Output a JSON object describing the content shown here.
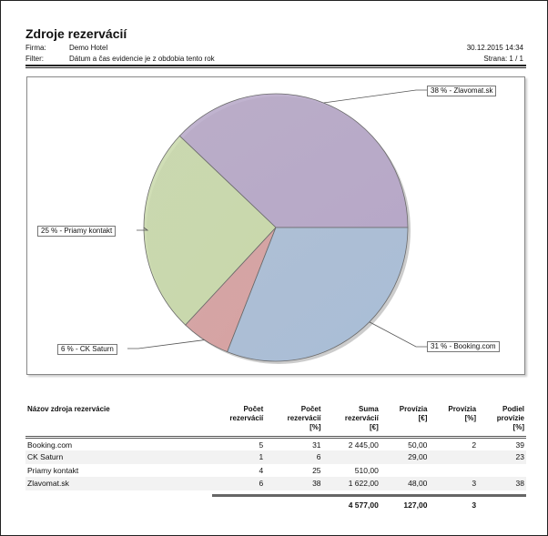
{
  "header": {
    "title": "Zdroje rezervácií",
    "firma_label": "Firma:",
    "firma_value": "Demo Hotel",
    "filter_label": "Filter:",
    "filter_value": "Dátum a čas evidencie je z obdobia tento rok",
    "datetime": "30.12.2015 14:34",
    "page": "Strana: 1 / 1"
  },
  "chart_data": {
    "type": "pie",
    "categories": [
      "Zlavomat.sk",
      "Priamy kontakt",
      "CK Saturn",
      "Booking.com"
    ],
    "values": [
      38,
      25,
      6,
      31
    ],
    "labels": [
      "38 % - Zlavomat.sk",
      "25 % - Priamy kontakt",
      "6 % - CK Saturn",
      "31 % - Booking.com"
    ],
    "colors": [
      "#b7a8c8",
      "#c9d9ab",
      "#d6a1a1",
      "#a9bdd6"
    ],
    "start": "east",
    "direction": "counterclockwise"
  },
  "table": {
    "headers": [
      [
        "Názov zdroja rezervácie"
      ],
      [
        "Počet",
        "rezervácií"
      ],
      [
        "Počet",
        "rezervácií",
        "[%]"
      ],
      [
        "Suma",
        "rezervácií",
        "[€]"
      ],
      [
        "Provízia",
        "[€]"
      ],
      [
        "Provízia",
        "[%]"
      ],
      [
        "Podiel",
        "provízie",
        "[%]"
      ]
    ],
    "rows": [
      [
        "Booking.com",
        "5",
        "31",
        "2 445,00",
        "50,00",
        "2",
        "39"
      ],
      [
        "CK Saturn",
        "1",
        "6",
        "",
        "29,00",
        "",
        "23"
      ],
      [
        "Priamy kontakt",
        "4",
        "25",
        "510,00",
        "",
        "",
        ""
      ],
      [
        "Zlavomat.sk",
        "6",
        "38",
        "1 622,00",
        "48,00",
        "3",
        "38"
      ]
    ],
    "totals": [
      "",
      "",
      "",
      "4 577,00",
      "127,00",
      "3",
      ""
    ]
  }
}
